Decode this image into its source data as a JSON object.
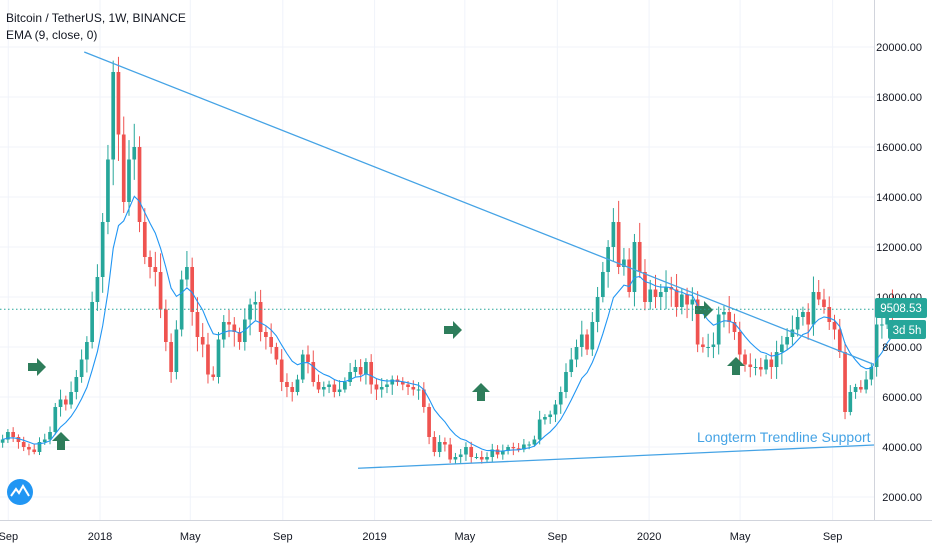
{
  "legend": {
    "symbol": "Bitcoin / TetherUS, 1W, BINANCE",
    "indicator": "EMA (9, close, 0)"
  },
  "price_label": "9508.53",
  "countdown_label": "3d 5h",
  "annotation": "Longterm Trendline Support",
  "colors": {
    "up": "#26a69a",
    "down": "#ef5350",
    "ema": "#2196f3",
    "trendline": "#45a3e5",
    "arrow": "#2e7d5b",
    "grid": "#f0f3fa",
    "axis": "#131722",
    "price_tag": "#26a69a"
  },
  "chart_data": {
    "type": "candlestick",
    "title": "Bitcoin / TetherUS, 1W, BINANCE",
    "y_ticks": [
      "2000.00",
      "4000.00",
      "6000.00",
      "8000.00",
      "10000.00",
      "12000.00",
      "14000.00",
      "16000.00",
      "18000.00",
      "20000.00"
    ],
    "x_ticks": [
      {
        "label": "Sep",
        "date": "2017-09-01"
      },
      {
        "label": "2018",
        "date": "2018-01-01"
      },
      {
        "label": "May",
        "date": "2018-05-01"
      },
      {
        "label": "Sep",
        "date": "2018-09-01"
      },
      {
        "label": "2019",
        "date": "2019-01-01"
      },
      {
        "label": "May",
        "date": "2019-05-01"
      },
      {
        "label": "Sep",
        "date": "2019-09-01"
      },
      {
        "label": "2020",
        "date": "2020-01-01"
      },
      {
        "label": "May",
        "date": "2020-05-01"
      },
      {
        "label": "Sep",
        "date": "2020-09-01"
      }
    ],
    "ylim": [
      1200,
      22000
    ],
    "xlim": [
      "2017-08-21",
      "2020-10-26"
    ],
    "grid": true,
    "close_levels": [
      4300,
      4600,
      4400,
      4200,
      4000,
      3900,
      3800,
      4200,
      4300,
      4600,
      5600,
      5900,
      5700,
      6200,
      6800,
      7500,
      8200,
      9800,
      10800,
      13000,
      15500,
      19000,
      16500,
      13800,
      15500,
      16000,
      13000,
      11600,
      11200,
      11000,
      9500,
      8200,
      7000,
      8700,
      10700,
      11200,
      9400,
      8400,
      8100,
      6900,
      6800,
      8300,
      9000,
      8900,
      8600,
      8200,
      9100,
      9700,
      9800,
      8600,
      8400,
      8000,
      7500,
      6600,
      6400,
      6200,
      6700,
      7700,
      7400,
      6600,
      6300,
      6400,
      6500,
      6200,
      6300,
      6600,
      7000,
      7200,
      6900,
      7400,
      6500,
      6300,
      6400,
      6500,
      6700,
      6600,
      6500,
      6400,
      6300,
      6300,
      5600,
      4400,
      3800,
      4200,
      4100,
      3500,
      3600,
      3700,
      4000,
      3600,
      3600,
      3500,
      3600,
      3900,
      3700,
      3850,
      4000,
      3950,
      3900,
      4100,
      4100,
      4300,
      5100,
      5200,
      5300,
      5700,
      6200,
      7000,
      7500,
      8000,
      8500,
      7900,
      9000,
      10000,
      11000,
      12000,
      13000,
      11200,
      11500,
      10200,
      12200,
      11000,
      9800,
      10300,
      10000,
      10200,
      10400,
      10300,
      9600,
      10100,
      9700,
      9900,
      8100,
      8000,
      8000,
      8100,
      9300,
      9400,
      9000,
      8600,
      7700,
      7300,
      7200,
      7200,
      7100,
      7500,
      7200,
      7800,
      8100,
      8400,
      8700,
      9200,
      9400,
      8900,
      10200,
      9900,
      9600,
      9000,
      8700,
      7800,
      5400,
      6200,
      6400,
      6300,
      6700,
      7200,
      8900,
      8900,
      9700,
      9500
    ],
    "series": [
      {
        "name": "EMA (9, close, 0)"
      }
    ],
    "trendlines": [
      {
        "from": {
          "date": "2017-12-11",
          "price": 19800
        },
        "to": {
          "date": "2020-10-26",
          "price": 7300
        }
      },
      {
        "from": {
          "date": "2018-12-10",
          "price": 3150
        },
        "to": {
          "date": "2020-10-26",
          "price": 4080
        }
      }
    ],
    "last_price": 9508.53
  }
}
